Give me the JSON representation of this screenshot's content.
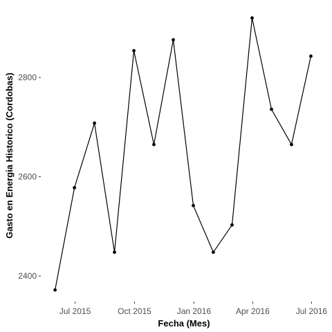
{
  "chart_data": {
    "type": "line",
    "title": "",
    "xlabel": "Fecha (Mes)",
    "ylabel": "Gasto en Energia Historico (Cordobas)",
    "grid": false,
    "x_ticks": [
      {
        "date": "2015-07-01",
        "label": "Jul 2015"
      },
      {
        "date": "2015-10-01",
        "label": "Oct 2015"
      },
      {
        "date": "2016-01-01",
        "label": "Jan 2016"
      },
      {
        "date": "2016-04-01",
        "label": "Apr 2016"
      },
      {
        "date": "2016-07-01",
        "label": "Jul 2016"
      }
    ],
    "y_ticks": [
      2400,
      2600,
      2800
    ],
    "xlim": [
      "2015-05-10",
      "2016-07-22"
    ],
    "ylim": [
      2350,
      2945
    ],
    "series": [
      {
        "color": "#000000",
        "points": [
          {
            "x": "2015-05-31",
            "y": 2372
          },
          {
            "x": "2015-06-30",
            "y": 2578
          },
          {
            "x": "2015-07-31",
            "y": 2708
          },
          {
            "x": "2015-08-31",
            "y": 2448
          },
          {
            "x": "2015-09-30",
            "y": 2854
          },
          {
            "x": "2015-10-31",
            "y": 2665
          },
          {
            "x": "2015-11-30",
            "y": 2876
          },
          {
            "x": "2015-12-31",
            "y": 2542
          },
          {
            "x": "2016-01-31",
            "y": 2448
          },
          {
            "x": "2016-02-29",
            "y": 2503
          },
          {
            "x": "2016-03-31",
            "y": 2920
          },
          {
            "x": "2016-04-30",
            "y": 2736
          },
          {
            "x": "2016-05-31",
            "y": 2665
          },
          {
            "x": "2016-06-30",
            "y": 2843
          }
        ]
      }
    ]
  }
}
